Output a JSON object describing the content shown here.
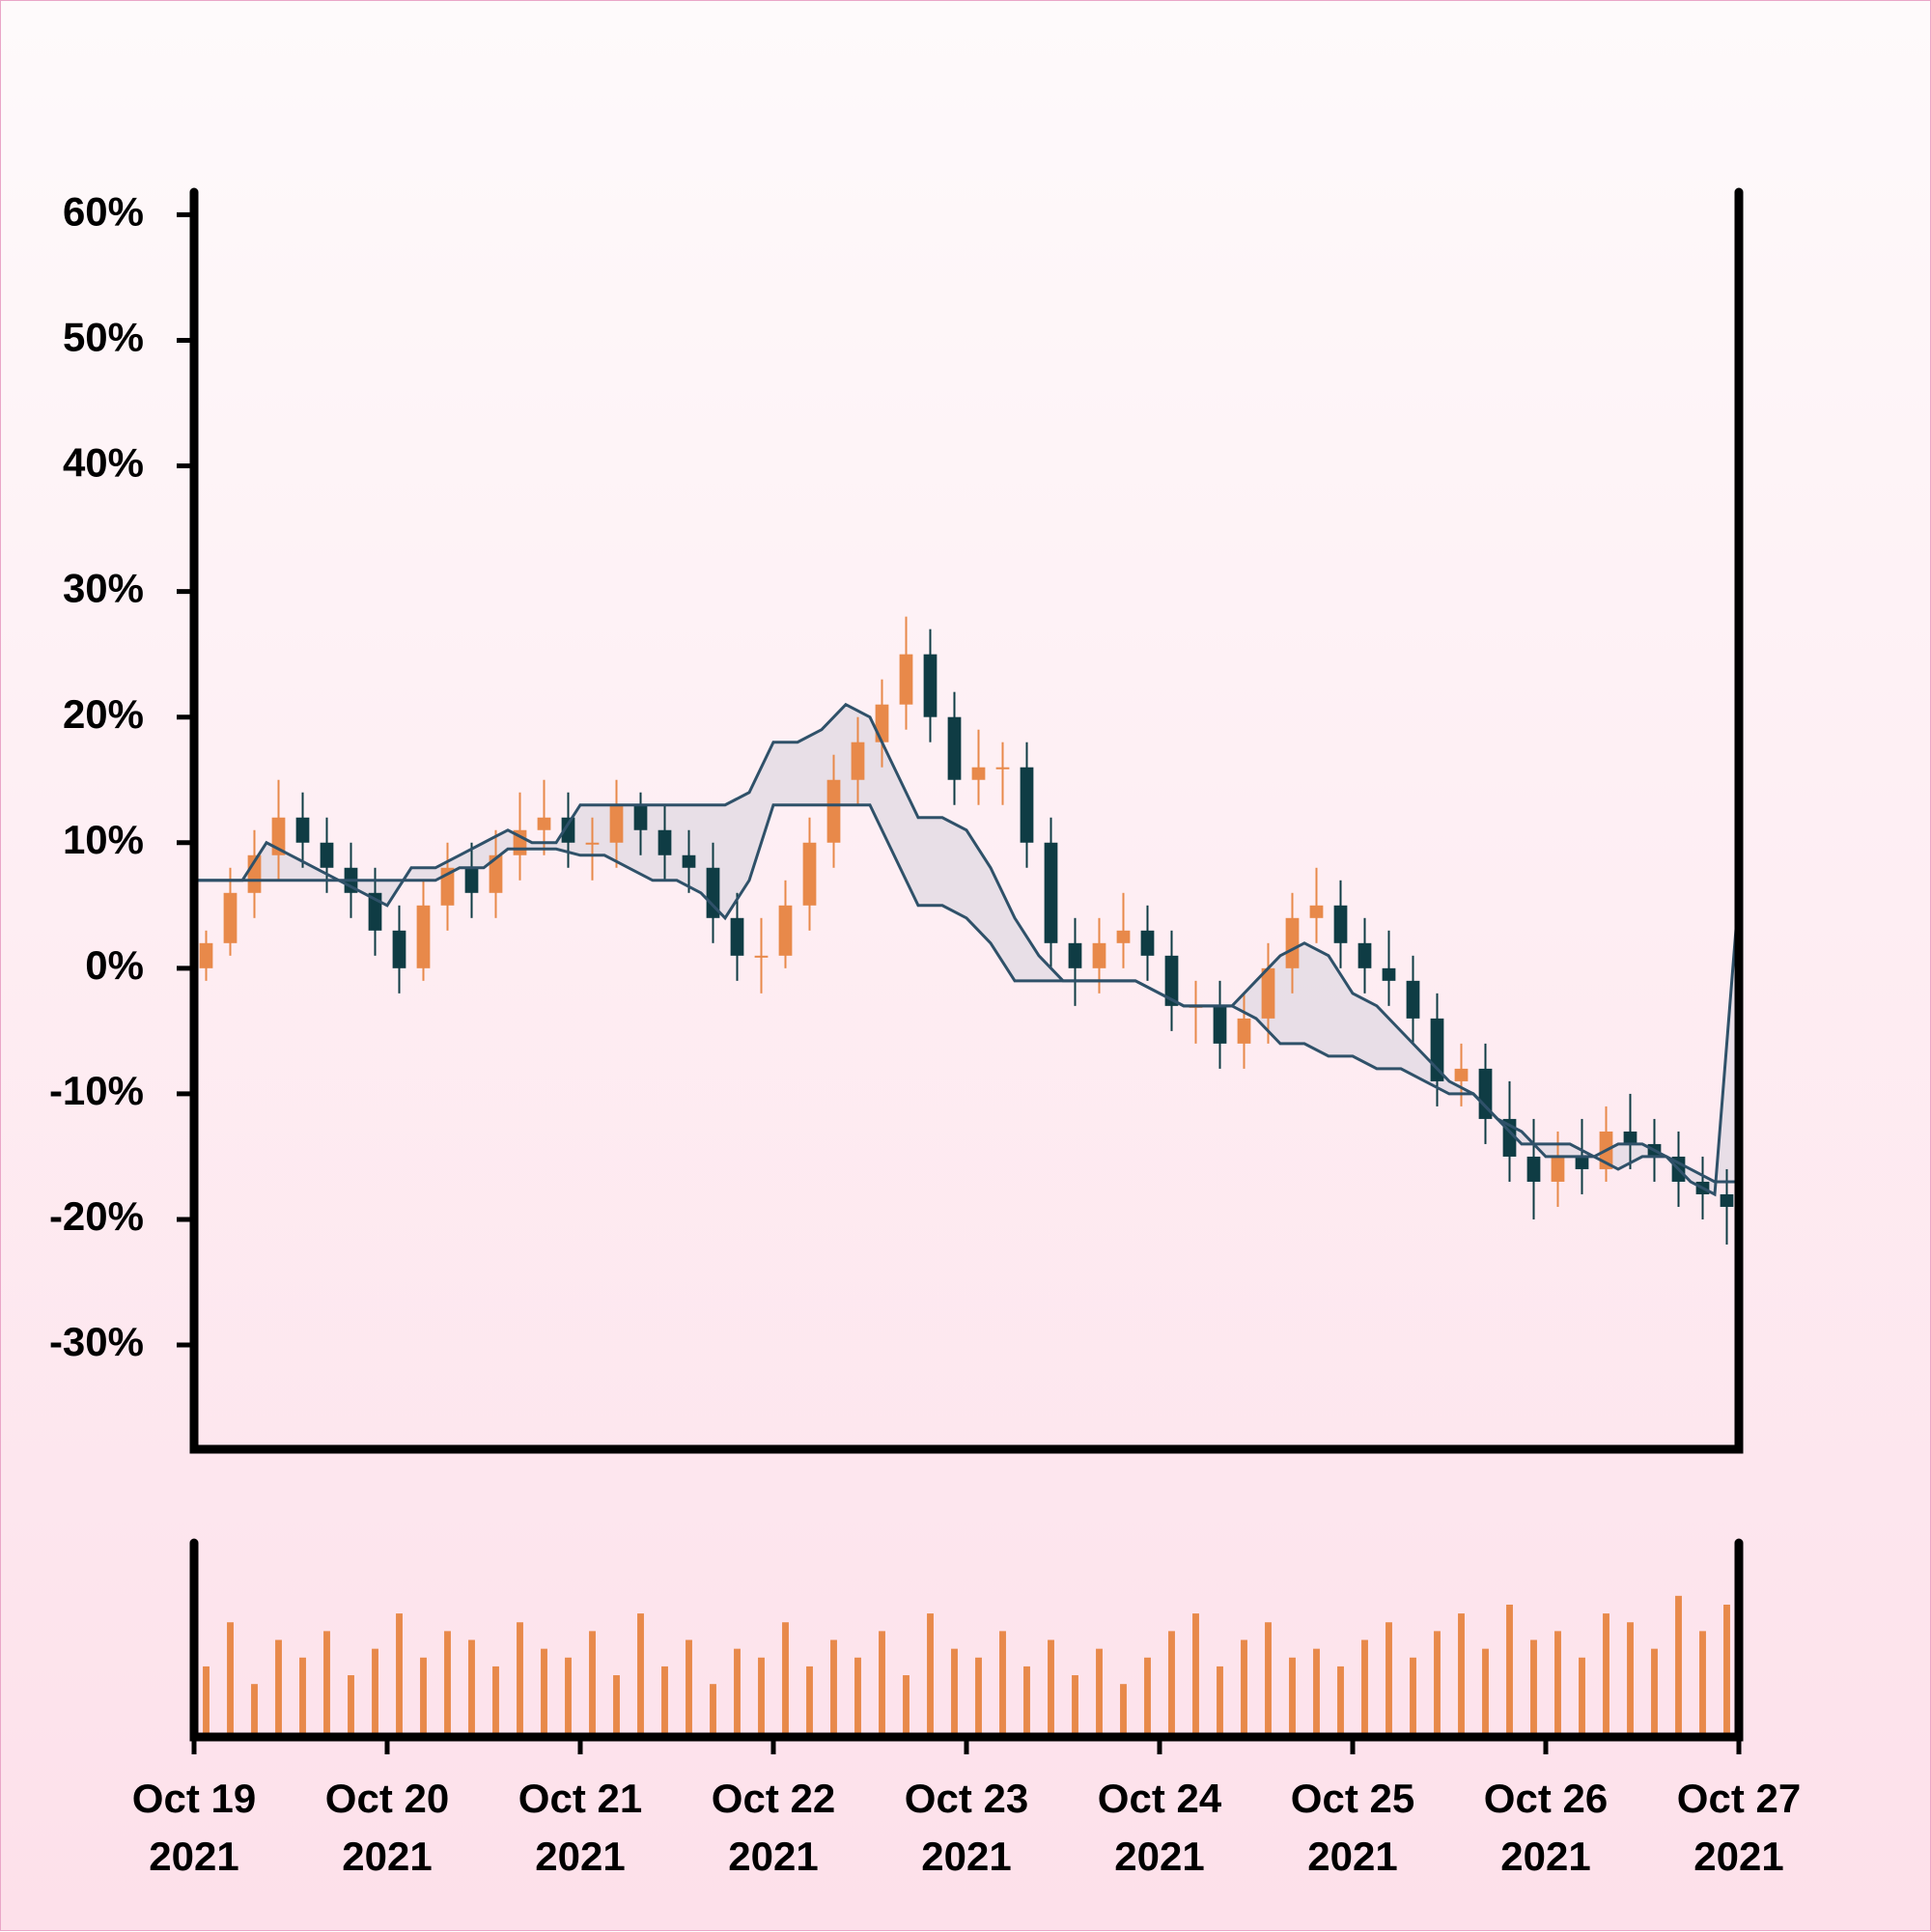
{
  "chart_data": {
    "type": "candlestick",
    "xlim": [
      0,
      8
    ],
    "xticks": [
      {
        "value": 0,
        "label": "Oct 19\n2021"
      },
      {
        "value": 1,
        "label": "Oct 20\n2021"
      },
      {
        "value": 2,
        "label": "Oct 21\n2021"
      },
      {
        "value": 3,
        "label": "Oct 22\n2021"
      },
      {
        "value": 4,
        "label": "Oct 23\n2021"
      },
      {
        "value": 5,
        "label": "Oct 24\n2021"
      },
      {
        "value": 6,
        "label": "Oct 25\n2021"
      },
      {
        "value": 7,
        "label": "Oct 26\n2021"
      },
      {
        "value": 8,
        "label": "Oct 27\n2021"
      }
    ],
    "ylim": [
      -38.3,
      61.8
    ],
    "yticks": [
      {
        "value": -30,
        "label": "-30%"
      },
      {
        "value": -20,
        "label": "-20%"
      },
      {
        "value": -10,
        "label": "-10%"
      },
      {
        "value": 0,
        "label": "0%"
      },
      {
        "value": 10,
        "label": "10%"
      },
      {
        "value": 20,
        "label": "20%"
      },
      {
        "value": 30,
        "label": "30%"
      },
      {
        "value": 40,
        "label": "40%"
      },
      {
        "value": 50,
        "label": "50%"
      },
      {
        "value": 60,
        "label": "60%"
      }
    ],
    "up_color": "#e8894a",
    "down_color": "#0f3c44",
    "cloud_color": "#e6dde6",
    "candles": {
      "x": [
        0.0625,
        0.1875,
        0.3125,
        0.4375,
        0.5625,
        0.6875,
        0.8125,
        0.9375,
        1.0625,
        1.1875,
        1.3125,
        1.4375,
        1.5625,
        1.6875,
        1.8125,
        1.9375,
        2.0625,
        2.1875,
        2.3125,
        2.4375,
        2.5625,
        2.6875,
        2.8125,
        2.9375,
        3.0625,
        3.1875,
        3.3125,
        3.4375,
        3.5625,
        3.6875,
        3.8125,
        3.9375,
        4.0625,
        4.1875,
        4.3125,
        4.4375,
        4.5625,
        4.6875,
        4.8125,
        4.9375,
        5.0625,
        5.1875,
        5.3125,
        5.4375,
        5.5625,
        5.6875,
        5.8125,
        5.9375,
        6.0625,
        6.1875,
        6.3125,
        6.4375,
        6.5625,
        6.6875,
        6.8125,
        6.9375,
        7.0625,
        7.1875,
        7.3125,
        7.4375,
        7.5625,
        7.6875,
        7.8125,
        7.9375
      ],
      "open": [
        0,
        2,
        6,
        9,
        12,
        10,
        8,
        6,
        3,
        0,
        5,
        8,
        6,
        9,
        11,
        12,
        10,
        10,
        13,
        11,
        9,
        8,
        4,
        1,
        1,
        5,
        10,
        15,
        18,
        21,
        25,
        20,
        15,
        16,
        16,
        10,
        2,
        0,
        2,
        3,
        1,
        -3,
        -3,
        -6,
        -4,
        0,
        4,
        5,
        2,
        0,
        -1,
        -4,
        -9,
        -8,
        -12,
        -15,
        -17,
        -15,
        -16,
        -13,
        -14,
        -15,
        -17,
        -18
      ],
      "high": [
        3,
        8,
        11,
        15,
        14,
        12,
        10,
        8,
        5,
        7,
        10,
        10,
        11,
        14,
        15,
        14,
        12,
        15,
        14,
        13,
        11,
        10,
        6,
        4,
        7,
        12,
        17,
        20,
        23,
        28,
        27,
        22,
        19,
        18,
        18,
        12,
        4,
        4,
        6,
        5,
        3,
        -1,
        -1,
        -2,
        2,
        6,
        8,
        7,
        4,
        3,
        1,
        -2,
        -6,
        -6,
        -9,
        -12,
        -13,
        -12,
        -11,
        -10,
        -12,
        -13,
        -15,
        -16
      ],
      "low": [
        -1,
        1,
        4,
        7,
        8,
        6,
        4,
        1,
        -2,
        -1,
        3,
        4,
        4,
        7,
        9,
        8,
        7,
        8,
        9,
        7,
        6,
        2,
        -1,
        -2,
        0,
        3,
        8,
        13,
        16,
        19,
        18,
        13,
        13,
        13,
        8,
        0,
        -3,
        -2,
        0,
        -1,
        -5,
        -6,
        -8,
        -8,
        -6,
        -2,
        2,
        0,
        -2,
        -3,
        -6,
        -11,
        -11,
        -14,
        -17,
        -20,
        -19,
        -18,
        -17,
        -16,
        -17,
        -19,
        -20,
        -22
      ],
      "close": [
        2,
        6,
        9,
        12,
        10,
        8,
        6,
        3,
        0,
        5,
        8,
        6,
        9,
        11,
        12,
        10,
        10,
        13,
        11,
        9,
        8,
        4,
        1,
        1,
        5,
        10,
        15,
        18,
        21,
        25,
        20,
        15,
        16,
        16,
        10,
        2,
        0,
        2,
        3,
        1,
        -3,
        -3,
        -6,
        -4,
        0,
        4,
        5,
        2,
        0,
        -1,
        -4,
        -9,
        -8,
        -12,
        -15,
        -17,
        -15,
        -16,
        -13,
        -14,
        -15,
        -17,
        -18,
        -19
      ],
      "volume": [
        40,
        65,
        30,
        55,
        45,
        60,
        35,
        50,
        70,
        45,
        60,
        55,
        40,
        65,
        50,
        45,
        60,
        35,
        70,
        40,
        55,
        30,
        50,
        45,
        65,
        40,
        55,
        45,
        60,
        35,
        70,
        50,
        45,
        60,
        40,
        55,
        35,
        50,
        30,
        45,
        60,
        70,
        40,
        55,
        65,
        45,
        50,
        40,
        55,
        65,
        45,
        60,
        70,
        50,
        75,
        55,
        60,
        45,
        70,
        65,
        50,
        80,
        60,
        75
      ]
    },
    "volume_ylim": [
      0,
      110
    ],
    "lines": [
      {
        "color": "#2f5169",
        "x": [
          0,
          0.125,
          0.25,
          0.375,
          0.5,
          0.625,
          0.75,
          0.875,
          1,
          1.125,
          1.25,
          1.375,
          1.5,
          1.625,
          1.75,
          1.875,
          2,
          2.125,
          2.25,
          2.375,
          2.5,
          2.625,
          2.75,
          2.875,
          3,
          3.125,
          3.25,
          3.375,
          3.5,
          3.625,
          3.75,
          3.875,
          4,
          4.125,
          4.25,
          4.375,
          4.5,
          4.625,
          4.75,
          4.875,
          5,
          5.125,
          5.25,
          5.375,
          5.5,
          5.625,
          5.75,
          5.875,
          6,
          6.125,
          6.25,
          6.375,
          6.5,
          6.625,
          6.75,
          6.875,
          7,
          7.125,
          7.25,
          7.375,
          7.5,
          7.625,
          7.75,
          7.875,
          8
        ],
        "values": [
          7,
          7,
          7,
          10,
          9,
          8,
          7,
          6,
          5,
          8,
          8,
          9,
          10,
          11,
          10,
          10,
          13,
          13,
          13,
          13,
          13,
          13,
          13,
          14,
          18,
          18,
          19,
          21,
          20,
          16,
          12,
          12,
          11,
          8,
          4,
          1,
          -1,
          -1,
          -1,
          -1,
          -2,
          -3,
          -3,
          -3,
          -1,
          1,
          2,
          1,
          -2,
          -3,
          -5,
          -7,
          -9,
          -10,
          -12,
          -13,
          -15,
          -15,
          -15,
          -14,
          -14,
          -15,
          -17,
          -18,
          6
        ]
      },
      {
        "color": "#2f5169",
        "x": [
          0,
          0.125,
          0.25,
          0.375,
          0.5,
          0.625,
          0.75,
          0.875,
          1,
          1.125,
          1.25,
          1.375,
          1.5,
          1.625,
          1.75,
          1.875,
          2,
          2.125,
          2.25,
          2.375,
          2.5,
          2.625,
          2.75,
          2.875,
          3,
          3.125,
          3.25,
          3.375,
          3.5,
          3.625,
          3.75,
          3.875,
          4,
          4.125,
          4.25,
          4.375,
          4.5,
          4.625,
          4.75,
          4.875,
          5,
          5.125,
          5.25,
          5.375,
          5.5,
          5.625,
          5.75,
          5.875,
          6,
          6.125,
          6.25,
          6.375,
          6.5,
          6.625,
          6.75,
          6.875,
          7,
          7.125,
          7.25,
          7.375,
          7.5,
          7.625,
          7.75,
          7.875,
          8
        ],
        "values": [
          7,
          7,
          7,
          7,
          7,
          7,
          7,
          7,
          7,
          7,
          7,
          8,
          8,
          9.5,
          9.5,
          9.5,
          9,
          9,
          8,
          7,
          7,
          6,
          4,
          7,
          13,
          13,
          13,
          13,
          13,
          9,
          5,
          5,
          4,
          2,
          -1,
          -1,
          -1,
          -1,
          -1,
          -1,
          -2,
          -3,
          -3,
          -3,
          -4,
          -6,
          -6,
          -7,
          -7,
          -8,
          -8,
          -9,
          -10,
          -10,
          -12,
          -14,
          -14,
          -14,
          -15,
          -16,
          -15,
          -15,
          -16,
          -17,
          -17
        ]
      }
    ]
  }
}
